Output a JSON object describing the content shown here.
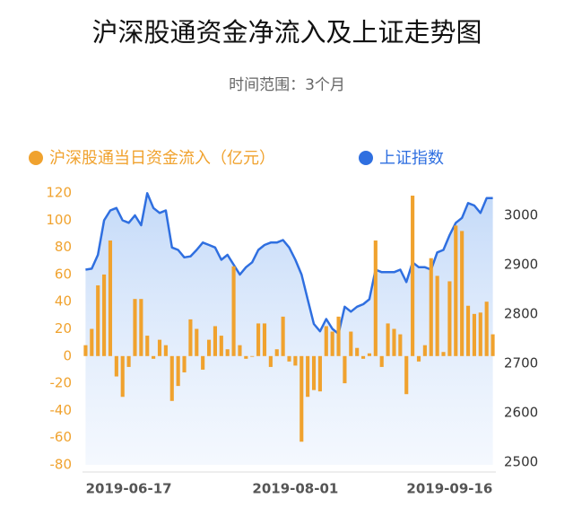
{
  "chart_data": {
    "type": "combo",
    "title": "沪深股通资金净流入及上证走势图",
    "subtitle": "时间范围：3个月",
    "categories": [
      null,
      null,
      null,
      null,
      null,
      null,
      null,
      "2019-06-17",
      null,
      null,
      null,
      null,
      null,
      null,
      null,
      null,
      null,
      null,
      null,
      null,
      null,
      null,
      null,
      null,
      null,
      null,
      null,
      null,
      null,
      null,
      null,
      null,
      null,
      null,
      "2019-08-01",
      null,
      null,
      null,
      null,
      null,
      null,
      null,
      null,
      null,
      null,
      null,
      null,
      null,
      null,
      null,
      null,
      null,
      null,
      null,
      null,
      null,
      null,
      null,
      null,
      "2019-09-16",
      null,
      null,
      null,
      null,
      null,
      null,
      null
    ],
    "series": [
      {
        "name": "沪深股通当日资金流入（亿元）",
        "type": "bar",
        "color": "#f0a22e",
        "values": [
          8,
          20,
          52,
          60,
          85,
          -15,
          -30,
          -8,
          42,
          42,
          15,
          -2,
          12,
          8,
          -33,
          -22,
          -12,
          27,
          20,
          -10,
          12,
          22,
          15,
          5,
          66,
          8,
          -2,
          0,
          24,
          24,
          -8,
          5,
          29,
          -4,
          -7,
          -63,
          -30,
          -25,
          -26,
          22,
          18,
          29,
          -20,
          18,
          6,
          -2,
          2,
          85,
          -8,
          24,
          20,
          16,
          -28,
          118,
          -4,
          8,
          72,
          59,
          3,
          55,
          96,
          92,
          37,
          31,
          32,
          40,
          16
        ]
      },
      {
        "name": "上证指数",
        "type": "line",
        "axis": "y2",
        "color": "#2f6fe0",
        "values": [
          2890,
          2892,
          2920,
          2990,
          3010,
          3015,
          2990,
          2985,
          3000,
          2980,
          3045,
          3015,
          3005,
          3010,
          2935,
          2930,
          2915,
          2917,
          2930,
          2945,
          2940,
          2935,
          2910,
          2920,
          2900,
          2880,
          2895,
          2905,
          2930,
          2940,
          2945,
          2945,
          2950,
          2935,
          2910,
          2880,
          2830,
          2780,
          2765,
          2790,
          2770,
          2760,
          2815,
          2805,
          2815,
          2820,
          2830,
          2890,
          2885,
          2885,
          2885,
          2890,
          2865,
          2905,
          2895,
          2895,
          2890,
          2925,
          2930,
          2960,
          2985,
          2995,
          3025,
          3020,
          3005,
          3035,
          3035
        ]
      }
    ],
    "ylim": [
      -80,
      120
    ],
    "yticks": [
      -80,
      -60,
      -40,
      -20,
      0,
      20,
      40,
      60,
      80,
      100,
      120
    ],
    "y2lim": [
      2494.5,
      3045.5
    ],
    "y2ticks": [
      2500,
      2600,
      2700,
      2800,
      2900,
      3000
    ]
  }
}
